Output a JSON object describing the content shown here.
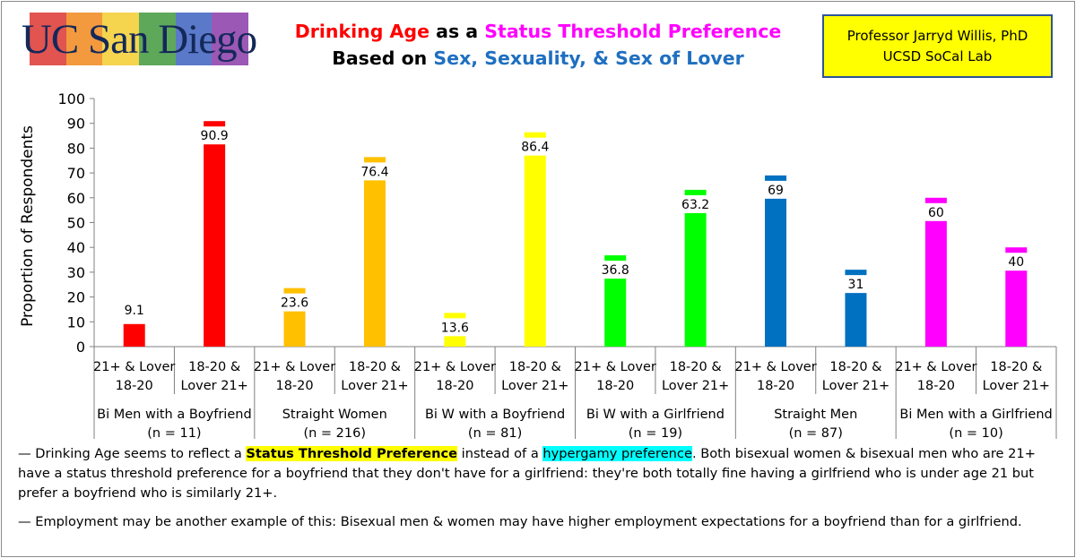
{
  "logo": {
    "text": "UC San Diego",
    "stripe_colors": [
      "#e1544f",
      "#f29a3d",
      "#f5d44e",
      "#5ea85a",
      "#5b79c9",
      "#9c58b5"
    ]
  },
  "title": {
    "line1": [
      {
        "text": "Drinking Age",
        "color": "#ff0000"
      },
      {
        "text": " as a ",
        "color": "#000000"
      },
      {
        "text": "Status Threshold Preference",
        "color": "#ff00ff"
      }
    ],
    "line2": [
      {
        "text": "Based on ",
        "color": "#000000"
      },
      {
        "text": "Sex, Sexuality, & Sex of Lover",
        "color": "#1f6fc0"
      }
    ]
  },
  "credit": {
    "line1": "Professor Jarryd Willis, PhD",
    "line2": "UCSD SoCal Lab"
  },
  "chart_data": {
    "type": "bar",
    "ylabel": "Proportion of Respondents",
    "ylim": [
      0,
      100
    ],
    "yticks": [
      0,
      10,
      20,
      30,
      40,
      50,
      60,
      70,
      80,
      90,
      100
    ],
    "grid": false,
    "groups": [
      {
        "name": "Bi Men with a Boyfriend",
        "n": "(n = 11)",
        "color": "#ff0000",
        "bars": [
          {
            "label1": "21+ & Lover",
            "label2": "18-20",
            "value": 9.1,
            "label": "9.1"
          },
          {
            "label1": "18-20 &",
            "label2": "Lover 21+",
            "value": 90.9,
            "label": "90.9"
          }
        ]
      },
      {
        "name": "Straight Women",
        "n": "(n = 216)",
        "color": "#ffc000",
        "bars": [
          {
            "label1": "21+ & Lover",
            "label2": "18-20",
            "value": 23.6,
            "label": "23.6"
          },
          {
            "label1": "18-20 &",
            "label2": "Lover 21+",
            "value": 76.4,
            "label": "76.4"
          }
        ]
      },
      {
        "name": "Bi W with a Boyfriend",
        "n": "(n = 81)",
        "color": "#ffff00",
        "bars": [
          {
            "label1": "21+ & Lover",
            "label2": "18-20",
            "value": 13.6,
            "label": "13.6"
          },
          {
            "label1": "18-20 &",
            "label2": "Lover 21+",
            "value": 86.4,
            "label": "86.4"
          }
        ]
      },
      {
        "name": "Bi W with a Girlfriend",
        "n": "(n = 19)",
        "color": "#00ff00",
        "bars": [
          {
            "label1": "21+ & Lover",
            "label2": "18-20",
            "value": 36.8,
            "label": "36.8"
          },
          {
            "label1": "18-20 &",
            "label2": "Lover 21+",
            "value": 63.2,
            "label": "63.2"
          }
        ]
      },
      {
        "name": "Straight Men",
        "n": "(n = 87)",
        "color": "#0070c0",
        "bars": [
          {
            "label1": "21+ & Lover",
            "label2": "18-20",
            "value": 69,
            "label": "69"
          },
          {
            "label1": "18-20 &",
            "label2": "Lover 21+",
            "value": 31,
            "label": "31"
          }
        ]
      },
      {
        "name": "Bi Men with a Girlfriend",
        "n": "(n = 10)",
        "color": "#ff00ff",
        "bars": [
          {
            "label1": "21+ & Lover",
            "label2": "18-20",
            "value": 60,
            "label": "60"
          },
          {
            "label1": "18-20 &",
            "label2": "Lover 21+",
            "value": 40,
            "label": "40"
          }
        ]
      }
    ]
  },
  "notes": {
    "p1_pre": "— Drinking Age seems to reflect a ",
    "p1_hl1": "Status Threshold Preference",
    "p1_mid": " instead of a ",
    "p1_hl2": "hypergamy preference",
    "p1_post": ".  Both bisexual women & bisexual men who are 21+ have a status threshold preference for a boyfriend that they don't have for a girlfriend: they're both totally fine having a girlfriend who is under age 21 but prefer a boyfriend who is similarly 21+.",
    "p2": "— Employment may be another example of this: Bisexual men & women may have higher employment expectations for a boyfriend than for a girlfriend."
  }
}
